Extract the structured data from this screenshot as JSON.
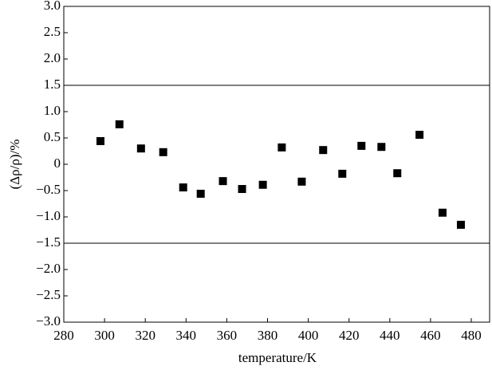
{
  "chart_data": {
    "type": "scatter",
    "x_label": "temperature/K",
    "y_label": "(Δρ/ρ)/%",
    "color": "#000000",
    "x": [
      298,
      307.3,
      317.9,
      328.8,
      338.6,
      347.2,
      358.1,
      367.5,
      377.7,
      387,
      396.8,
      407.3,
      416.7,
      426.1,
      435.9,
      443.7,
      454.6,
      465.9,
      474.9
    ],
    "values": [
      0.44,
      0.76,
      0.3,
      0.23,
      -0.44,
      -0.56,
      -0.32,
      -0.47,
      -0.39,
      0.32,
      -0.33,
      0.27,
      -0.18,
      0.35,
      0.33,
      -0.17,
      0.56,
      -0.92,
      -1.15
    ],
    "hlines": [
      1.5,
      -1.5
    ],
    "xlim": [
      280,
      489
    ],
    "ylim": [
      -3,
      3
    ],
    "xticks": [
      280,
      300,
      320,
      340,
      360,
      380,
      400,
      420,
      440,
      460,
      480
    ],
    "yticks": [
      {
        "value": -3,
        "label": "−3.0"
      },
      {
        "value": -2.5,
        "label": "−2.5"
      },
      {
        "value": -2,
        "label": "−2.0"
      },
      {
        "value": -1.5,
        "label": "−1.5"
      },
      {
        "value": -1,
        "label": "−1.0"
      },
      {
        "value": -0.5,
        "label": "−0.5"
      },
      0,
      0.5,
      {
        "value": 1,
        "label": "1.0"
      },
      1.5,
      {
        "value": 2,
        "label": "2.0"
      },
      2.5,
      {
        "value": 3,
        "label": "3.0"
      }
    ]
  }
}
